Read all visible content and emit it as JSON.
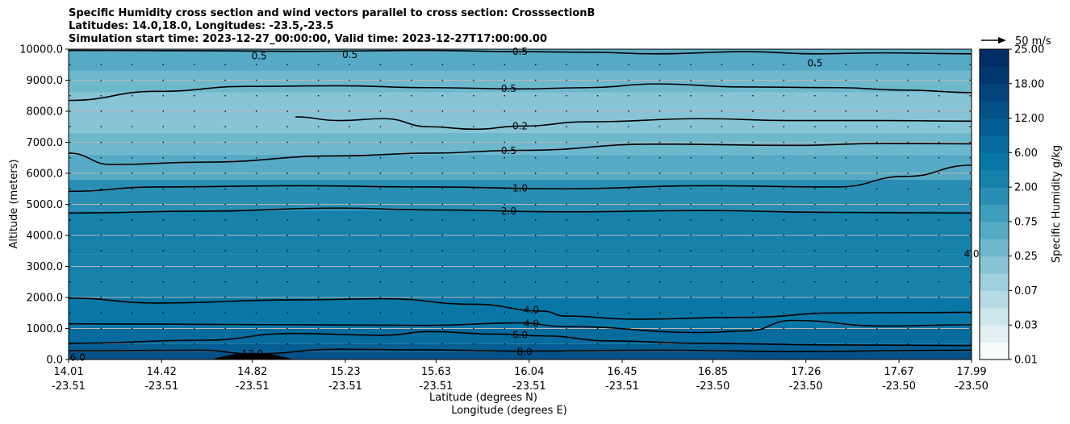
{
  "title": {
    "line1": "Specific Humidity cross section and wind vectors parallel to cross section: CrosssectionB",
    "line2": "Latitudes: 14.0,18.0, Longitudes: -23.5,-23.5",
    "line3": "Simulation start time: 2023-12-27_00:00:00, Valid time: 2023-12-27T17:00:00.00"
  },
  "chart_data": {
    "type": "contour",
    "xlabel_lat": "Latitude (degrees N)",
    "xlabel_lon": "Longitude (degrees E)",
    "ylabel": "Altitude (meters)",
    "ylim": [
      0,
      10000
    ],
    "xlim": [
      14.01,
      17.99
    ],
    "grid": "horizontal",
    "y_ticks": [
      {
        "value": 0,
        "label": "0.0"
      },
      {
        "value": 1000,
        "label": "1000.0"
      },
      {
        "value": 2000,
        "label": "2000.0"
      },
      {
        "value": 3000,
        "label": "3000.0"
      },
      {
        "value": 4000,
        "label": "4000.0"
      },
      {
        "value": 5000,
        "label": "5000.0"
      },
      {
        "value": 6000,
        "label": "6000.0"
      },
      {
        "value": 7000,
        "label": "7000.0"
      },
      {
        "value": 8000,
        "label": "8000.0"
      },
      {
        "value": 9000,
        "label": "9000.0"
      },
      {
        "value": 10000,
        "label": "10000.0"
      }
    ],
    "x_ticks": [
      {
        "lat": "14.01",
        "lon": "-23.51"
      },
      {
        "lat": "14.42",
        "lon": "-23.51"
      },
      {
        "lat": "14.82",
        "lon": "-23.51"
      },
      {
        "lat": "15.23",
        "lon": "-23.51"
      },
      {
        "lat": "15.63",
        "lon": "-23.51"
      },
      {
        "lat": "16.04",
        "lon": "-23.51"
      },
      {
        "lat": "16.45",
        "lon": "-23.51"
      },
      {
        "lat": "16.85",
        "lon": "-23.50"
      },
      {
        "lat": "17.26",
        "lon": "-23.50"
      },
      {
        "lat": "17.67",
        "lon": "-23.50"
      },
      {
        "lat": "17.99",
        "lon": "-23.50"
      }
    ],
    "humidity_bands": [
      {
        "alt_bottom": 9300,
        "alt_top": 10000,
        "q": 0.4
      },
      {
        "alt_bottom": 8600,
        "alt_top": 9300,
        "q": 0.3
      },
      {
        "alt_bottom": 7300,
        "alt_top": 8600,
        "q": 0.2
      },
      {
        "alt_bottom": 6600,
        "alt_top": 7300,
        "q": 0.3
      },
      {
        "alt_bottom": 5800,
        "alt_top": 6600,
        "q": 0.6
      },
      {
        "alt_bottom": 4800,
        "alt_top": 5800,
        "q": 1.5
      },
      {
        "alt_bottom": 3400,
        "alt_top": 4800,
        "q": 2.5
      },
      {
        "alt_bottom": 2000,
        "alt_top": 3400,
        "q": 3.5
      },
      {
        "alt_bottom": 1000,
        "alt_top": 2000,
        "q": 5.0
      },
      {
        "alt_bottom": 500,
        "alt_top": 1000,
        "q": 7.0
      },
      {
        "alt_bottom": 250,
        "alt_top": 500,
        "q": 10.0
      },
      {
        "alt_bottom": 0,
        "alt_top": 250,
        "q": 14.0
      }
    ],
    "contours": [
      {
        "level_label": "0.5",
        "label_at_lat": 16.0,
        "points": [
          [
            14.01,
            9960
          ],
          [
            14.6,
            9950
          ],
          [
            15.0,
            9930
          ],
          [
            15.6,
            9960
          ],
          [
            16.0,
            9920
          ],
          [
            16.3,
            9900
          ],
          [
            16.6,
            9850
          ],
          [
            17.0,
            9920
          ],
          [
            17.3,
            9850
          ],
          [
            17.6,
            9880
          ],
          [
            17.99,
            9850
          ]
        ]
      },
      {
        "level_label": "0.5",
        "label_at_lat": 15.95,
        "points": [
          [
            14.01,
            8350
          ],
          [
            14.4,
            8640
          ],
          [
            14.8,
            8800
          ],
          [
            15.2,
            8820
          ],
          [
            15.6,
            8760
          ],
          [
            16.0,
            8720
          ],
          [
            16.3,
            8760
          ],
          [
            16.6,
            8880
          ],
          [
            17.0,
            8780
          ],
          [
            17.4,
            8760
          ],
          [
            17.7,
            8680
          ],
          [
            17.99,
            8600
          ]
        ]
      },
      {
        "level_label": "0.2",
        "label_at_lat": 16.0,
        "points": [
          [
            15.01,
            7820
          ],
          [
            15.2,
            7700
          ],
          [
            15.4,
            7760
          ],
          [
            15.6,
            7500
          ],
          [
            15.8,
            7420
          ],
          [
            16.0,
            7520
          ],
          [
            16.3,
            7660
          ],
          [
            16.8,
            7760
          ],
          [
            17.2,
            7700
          ],
          [
            17.6,
            7700
          ],
          [
            17.99,
            7680
          ]
        ]
      },
      {
        "level_label": "0.5",
        "label_at_lat": 15.95,
        "points": [
          [
            14.01,
            6650
          ],
          [
            14.2,
            6280
          ],
          [
            14.6,
            6360
          ],
          [
            15.2,
            6560
          ],
          [
            15.6,
            6650
          ],
          [
            16.0,
            6740
          ],
          [
            16.6,
            6940
          ],
          [
            17.2,
            6900
          ],
          [
            17.6,
            6960
          ],
          [
            17.99,
            6950
          ]
        ]
      },
      {
        "level_label": "1.0",
        "label_at_lat": 16.0,
        "points": [
          [
            14.01,
            5420
          ],
          [
            14.4,
            5560
          ],
          [
            15.0,
            5600
          ],
          [
            15.6,
            5560
          ],
          [
            16.2,
            5500
          ],
          [
            16.8,
            5600
          ],
          [
            17.4,
            5560
          ],
          [
            17.7,
            5900
          ],
          [
            17.99,
            6260
          ]
        ]
      },
      {
        "level_label": "2.0",
        "label_at_lat": 15.95,
        "points": [
          [
            14.01,
            4720
          ],
          [
            14.6,
            4780
          ],
          [
            15.2,
            4880
          ],
          [
            15.6,
            4820
          ],
          [
            16.2,
            4760
          ],
          [
            16.8,
            4800
          ],
          [
            17.4,
            4740
          ],
          [
            17.99,
            4720
          ]
        ]
      },
      {
        "level_label": "4.0",
        "label_at_lat": 16.05,
        "points": [
          [
            14.01,
            1980
          ],
          [
            14.4,
            1820
          ],
          [
            15.0,
            1920
          ],
          [
            15.4,
            1960
          ],
          [
            15.8,
            1780
          ],
          [
            16.1,
            1560
          ],
          [
            16.2,
            1400
          ],
          [
            16.5,
            1300
          ],
          [
            17.0,
            1360
          ],
          [
            17.4,
            1500
          ],
          [
            17.99,
            1520
          ]
        ]
      },
      {
        "level_label": "4.0",
        "label_at_lat": 16.05,
        "points": [
          [
            14.01,
            1150
          ],
          [
            14.4,
            1140
          ],
          [
            15.0,
            1120
          ],
          [
            15.6,
            1100
          ],
          [
            16.0,
            1180
          ],
          [
            16.2,
            1060
          ],
          [
            16.8,
            870
          ],
          [
            17.0,
            920
          ],
          [
            17.2,
            1260
          ],
          [
            17.6,
            1080
          ],
          [
            17.99,
            1120
          ]
        ]
      },
      {
        "level_label": "6.0",
        "label_at_lat": 16.0,
        "points": [
          [
            14.01,
            520
          ],
          [
            14.6,
            620
          ],
          [
            15.0,
            840
          ],
          [
            15.4,
            780
          ],
          [
            15.6,
            900
          ],
          [
            15.9,
            820
          ],
          [
            16.1,
            760
          ],
          [
            16.4,
            600
          ],
          [
            16.8,
            520
          ],
          [
            17.4,
            470
          ],
          [
            17.99,
            450
          ]
        ]
      },
      {
        "level_label": "12.0",
        "label_at_lat": 14.82,
        "points": [
          [
            14.01,
            280
          ],
          [
            14.6,
            300
          ],
          [
            14.82,
            180
          ],
          [
            15.2,
            330
          ],
          [
            15.6,
            310
          ],
          [
            16.0,
            270
          ],
          [
            16.6,
            300
          ],
          [
            17.2,
            260
          ],
          [
            17.99,
            300
          ]
        ]
      }
    ],
    "contour_extra_labels": [
      {
        "text": "0.5",
        "lat": 14.85,
        "alt": 9780
      },
      {
        "text": "0.5",
        "lat": 15.25,
        "alt": 9820
      },
      {
        "text": "0.5",
        "lat": 17.3,
        "alt": 9550
      },
      {
        "text": "4.0",
        "lat": 17.99,
        "alt": 3400
      },
      {
        "text": "8.0",
        "lat": 16.02,
        "alt": 250
      },
      {
        "text": "6.0",
        "lat": 14.05,
        "alt": 70
      }
    ],
    "wind_vector_rows": [
      {
        "alt": 9500,
        "u_ms": -4.0
      },
      {
        "alt": 9000,
        "u_ms": -3.5
      },
      {
        "alt": 8500,
        "u_ms": -0.3
      },
      {
        "alt": 8000,
        "u_ms": -0.3
      },
      {
        "alt": 7500,
        "u_ms": -0.3
      },
      {
        "alt": 7000,
        "u_ms": -0.3
      },
      {
        "alt": 6500,
        "u_ms": -0.3
      },
      {
        "alt": 6000,
        "u_ms": -0.3
      },
      {
        "alt": 5500,
        "u_ms": -0.3
      },
      {
        "alt": 5000,
        "u_ms": -0.3
      },
      {
        "alt": 4500,
        "u_ms": -0.3
      },
      {
        "alt": 4000,
        "u_ms": -0.3
      },
      {
        "alt": 3500,
        "u_ms": -0.3
      },
      {
        "alt": 3000,
        "u_ms": -0.3
      },
      {
        "alt": 2500,
        "u_ms": -0.3
      },
      {
        "alt": 2000,
        "u_ms": -0.3
      },
      {
        "alt": 1500,
        "u_ms": -0.3
      },
      {
        "alt": 1000,
        "u_ms": -0.3
      },
      {
        "alt": 500,
        "u_ms": -0.3
      }
    ],
    "wind_key": {
      "label": "50 m/s",
      "speed_ms": 50
    },
    "colorbar": {
      "label": "Specific Humidity g/kg",
      "levels": [
        "0.01",
        "0.02",
        "0.03",
        "0.05",
        "0.07",
        "0.1",
        "0.25",
        "0.4",
        "0.75",
        "1.0",
        "2.00",
        "4.0",
        "6.00",
        "9.0",
        "12.00",
        "15.0",
        "18.00",
        "21.0",
        "25.00"
      ],
      "tick_labels": [
        "0.01",
        "0.03",
        "0.07",
        "0.25",
        "0.75",
        "2.00",
        "6.00",
        "12.00",
        "18.00",
        "25.00"
      ],
      "colors": [
        "#f7fbfc",
        "#e2f0f3",
        "#cde6ec",
        "#b6dbe5",
        "#9fd0de",
        "#86c4d6",
        "#6eb8ce",
        "#56aac5",
        "#3e9cbc",
        "#2a8eb4",
        "#1681ab",
        "#0877a5",
        "#066b9d",
        "#055e93",
        "#045188",
        "#03447c",
        "#023870",
        "#022c64",
        "#012058"
      ]
    }
  }
}
